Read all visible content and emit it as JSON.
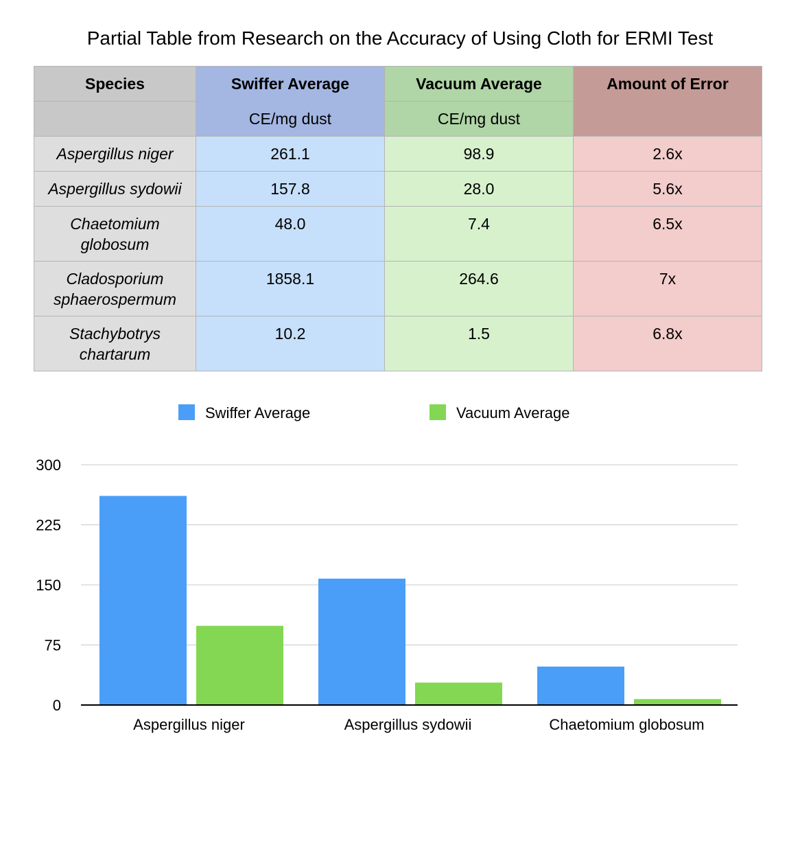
{
  "title": "Partial Table from Research on the Accuracy of Using Cloth for ERMI Test",
  "table": {
    "headers": [
      "Species",
      "Swiffer Average",
      "Vacuum Average",
      "Amount of Error"
    ],
    "units": [
      "",
      "CE/mg dust",
      "CE/mg dust",
      ""
    ],
    "rows": [
      {
        "species": [
          "Aspergillus niger"
        ],
        "swiffer": "261.1",
        "vacuum": "98.9",
        "error": "2.6x"
      },
      {
        "species": [
          "Aspergillus sydowii"
        ],
        "swiffer": "157.8",
        "vacuum": "28.0",
        "error": "5.6x"
      },
      {
        "species": [
          "Chaetomium",
          "globosum"
        ],
        "swiffer": "48.0",
        "vacuum": "7.4",
        "error": "6.5x"
      },
      {
        "species": [
          "Cladosporium",
          "sphaerospermum"
        ],
        "swiffer": "1858.1",
        "vacuum": "264.6",
        "error": "7x"
      },
      {
        "species": [
          "Stachybotrys",
          "chartarum"
        ],
        "swiffer": "10.2",
        "vacuum": "1.5",
        "error": "6.8x"
      }
    ]
  },
  "chart_data": {
    "type": "bar",
    "categories": [
      "Aspergillus niger",
      "Aspergillus sydowii",
      "Chaetomium globosum"
    ],
    "series": [
      {
        "name": "Swiffer Average",
        "values": [
          261.1,
          157.8,
          48.0
        ],
        "color": "#4a9ef7"
      },
      {
        "name": "Vacuum Average",
        "values": [
          98.9,
          28.0,
          7.4
        ],
        "color": "#83d752"
      }
    ],
    "ylim": [
      0,
      300
    ],
    "yticks": [
      0,
      75,
      150,
      225,
      300
    ],
    "grid": true,
    "legend": "top"
  }
}
